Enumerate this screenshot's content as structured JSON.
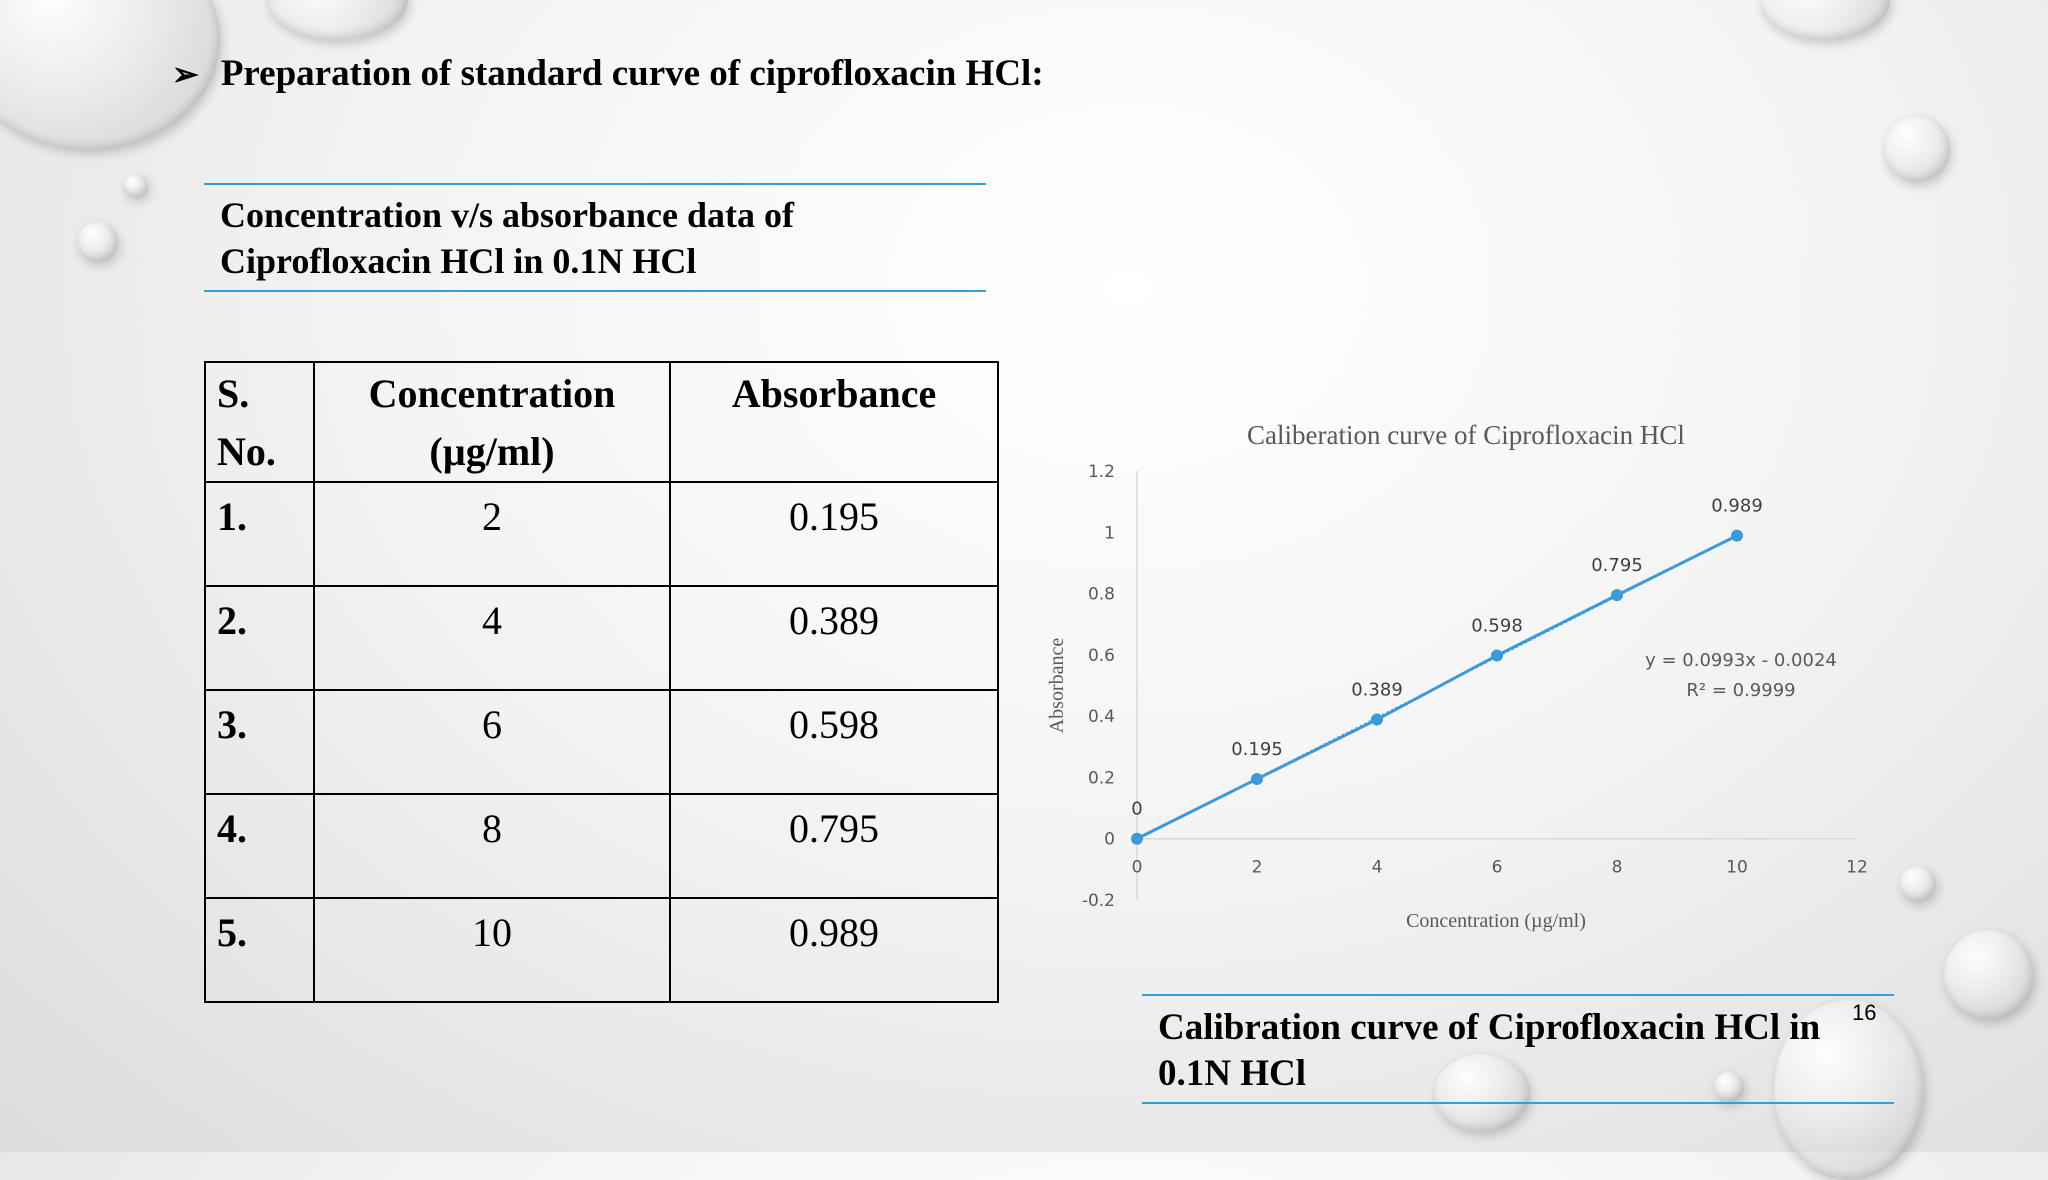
{
  "heading": {
    "bullet_icon": "arrow-bullet-icon",
    "text": "Preparation of standard curve of ciprofloxacin HCl:"
  },
  "table": {
    "caption_line1": "Concentration v/s absorbance data of",
    "caption_line2": "Ciprofloxacin HCl in 0.1N HCl",
    "headers": {
      "sno_line1": "S.",
      "sno_line2": "No.",
      "conc_line1": "Concentration",
      "conc_line2": "(µg/ml)",
      "abs": "Absorbance"
    },
    "rows": [
      {
        "sno": "1.",
        "conc": "2",
        "abs": "0.195"
      },
      {
        "sno": "2.",
        "conc": "4",
        "abs": "0.389"
      },
      {
        "sno": "3.",
        "conc": "6",
        "abs": "0.598"
      },
      {
        "sno": "4.",
        "conc": "8",
        "abs": "0.795"
      },
      {
        "sno": "5.",
        "conc": "10",
        "abs": "0.989"
      }
    ]
  },
  "chart_data": {
    "type": "scatter",
    "title": "Caliberation curve of Ciprofloxacin HCl",
    "xlabel": "Concentration (µg/ml)",
    "ylabel": "Absorbance",
    "xlim": [
      0,
      12
    ],
    "ylim": [
      -0.2,
      1.2
    ],
    "x_ticks": [
      "0",
      "2",
      "4",
      "6",
      "8",
      "10",
      "12"
    ],
    "y_ticks": [
      "1.2",
      "1",
      "0.8",
      "0.6",
      "0.4",
      "0.2",
      "0",
      "-0.2"
    ],
    "series": [
      {
        "x": [
          0,
          2,
          4,
          6,
          8,
          10
        ],
        "y": [
          0,
          0.195,
          0.389,
          0.598,
          0.795,
          0.989
        ],
        "labels": [
          "0",
          "0.195",
          "0.389",
          "0.598",
          "0.795",
          "0.989"
        ],
        "color": "#3b9ad9"
      }
    ],
    "trendline": {
      "equation": "y = 0.0993x - 0.0024",
      "r2": "R² = 0.9999",
      "slope": 0.0993,
      "intercept": -0.0024
    },
    "grid": false
  },
  "figure_caption": {
    "line1": "Calibration curve of Ciprofloxacin HCl in",
    "line2": "0.1N HCl"
  },
  "page_number": "16"
}
